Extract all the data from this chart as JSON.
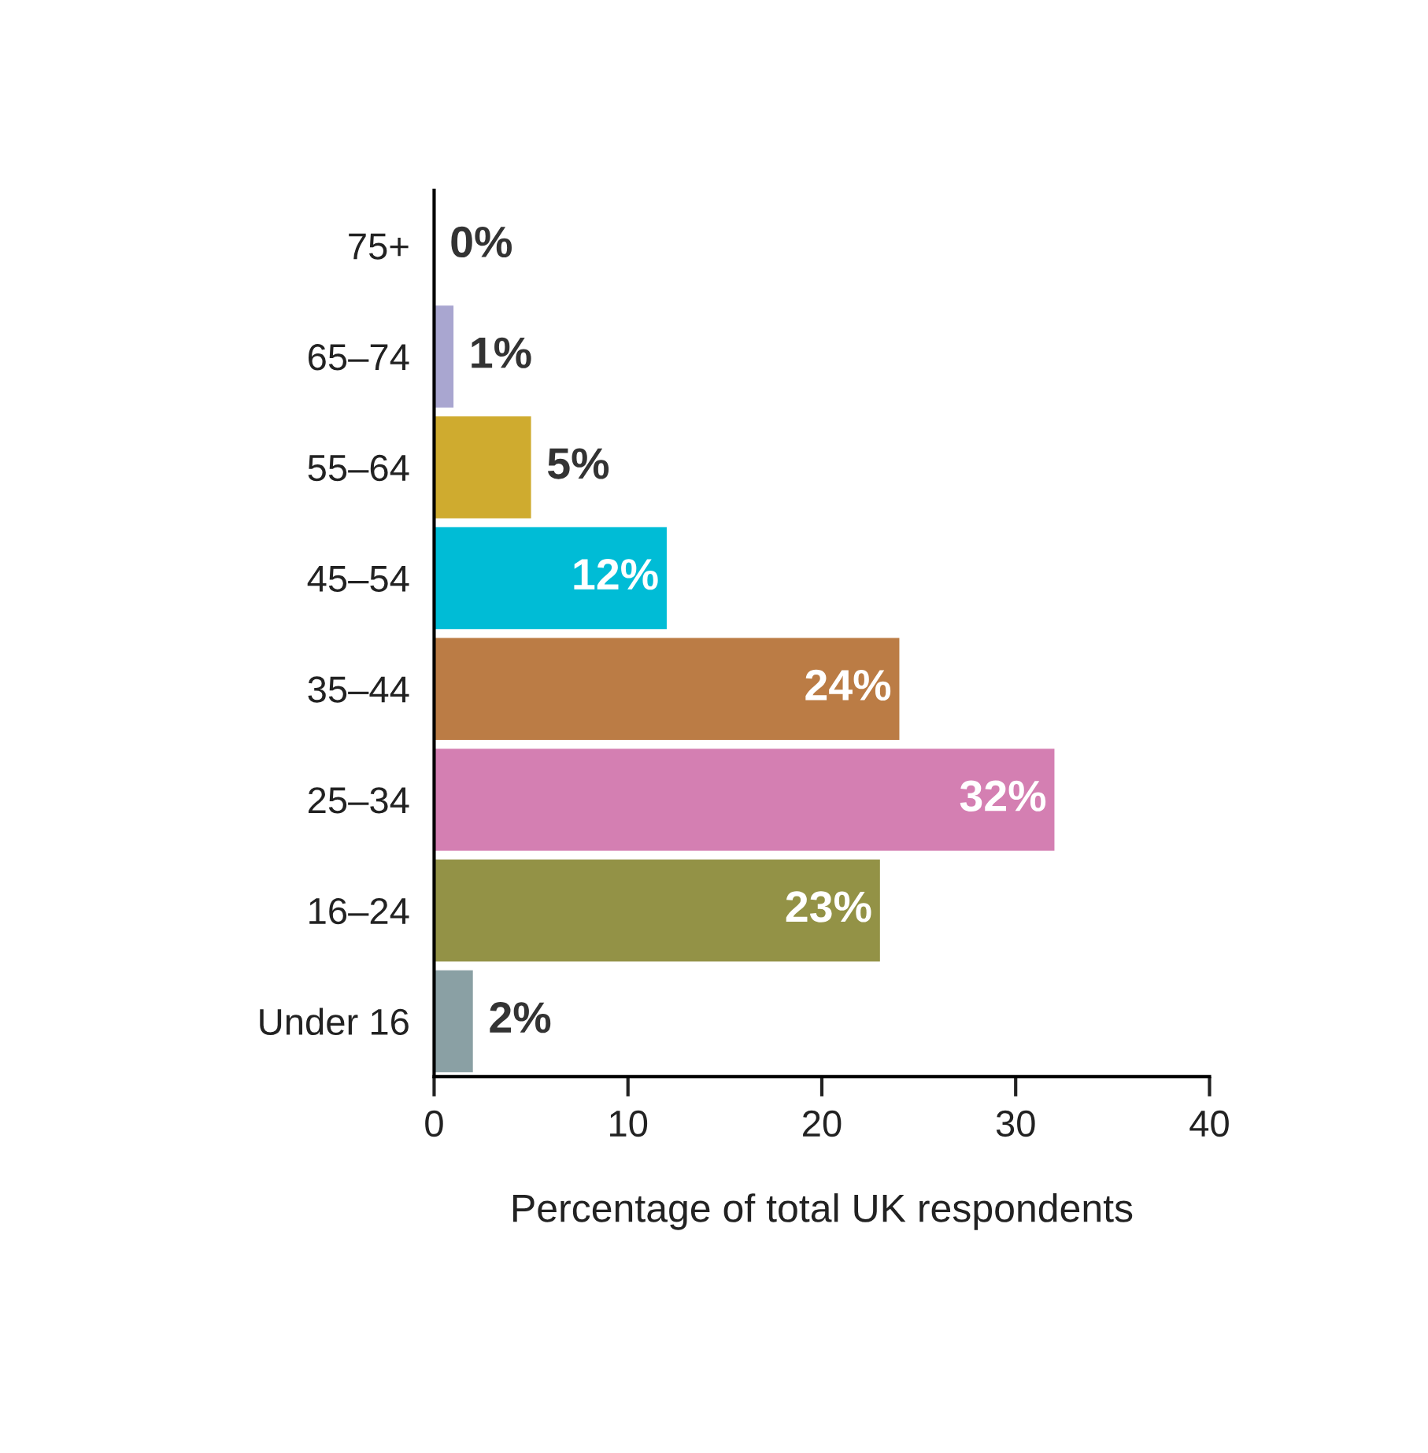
{
  "chart_data": {
    "type": "bar",
    "orientation": "horizontal",
    "xlabel": "Percentage of total UK respondents",
    "categories": [
      "75+",
      "65–74",
      "55–64",
      "45–54",
      "35–44",
      "25–34",
      "16–24",
      "Under 16"
    ],
    "values": [
      0,
      1,
      5,
      12,
      24,
      32,
      23,
      2
    ],
    "value_labels": [
      "0%",
      "1%",
      "5%",
      "12%",
      "24%",
      "32%",
      "23%",
      "2%"
    ],
    "colors": [
      "#a9a6d0",
      "#a9a6d0",
      "#cfab2f",
      "#00bcd6",
      "#bb7c45",
      "#d47fb2",
      "#939246",
      "#8aa0a4"
    ],
    "xlim": [
      0,
      40
    ],
    "xticks": [
      0,
      10,
      20,
      30,
      40
    ],
    "grid": false,
    "legend": false
  }
}
